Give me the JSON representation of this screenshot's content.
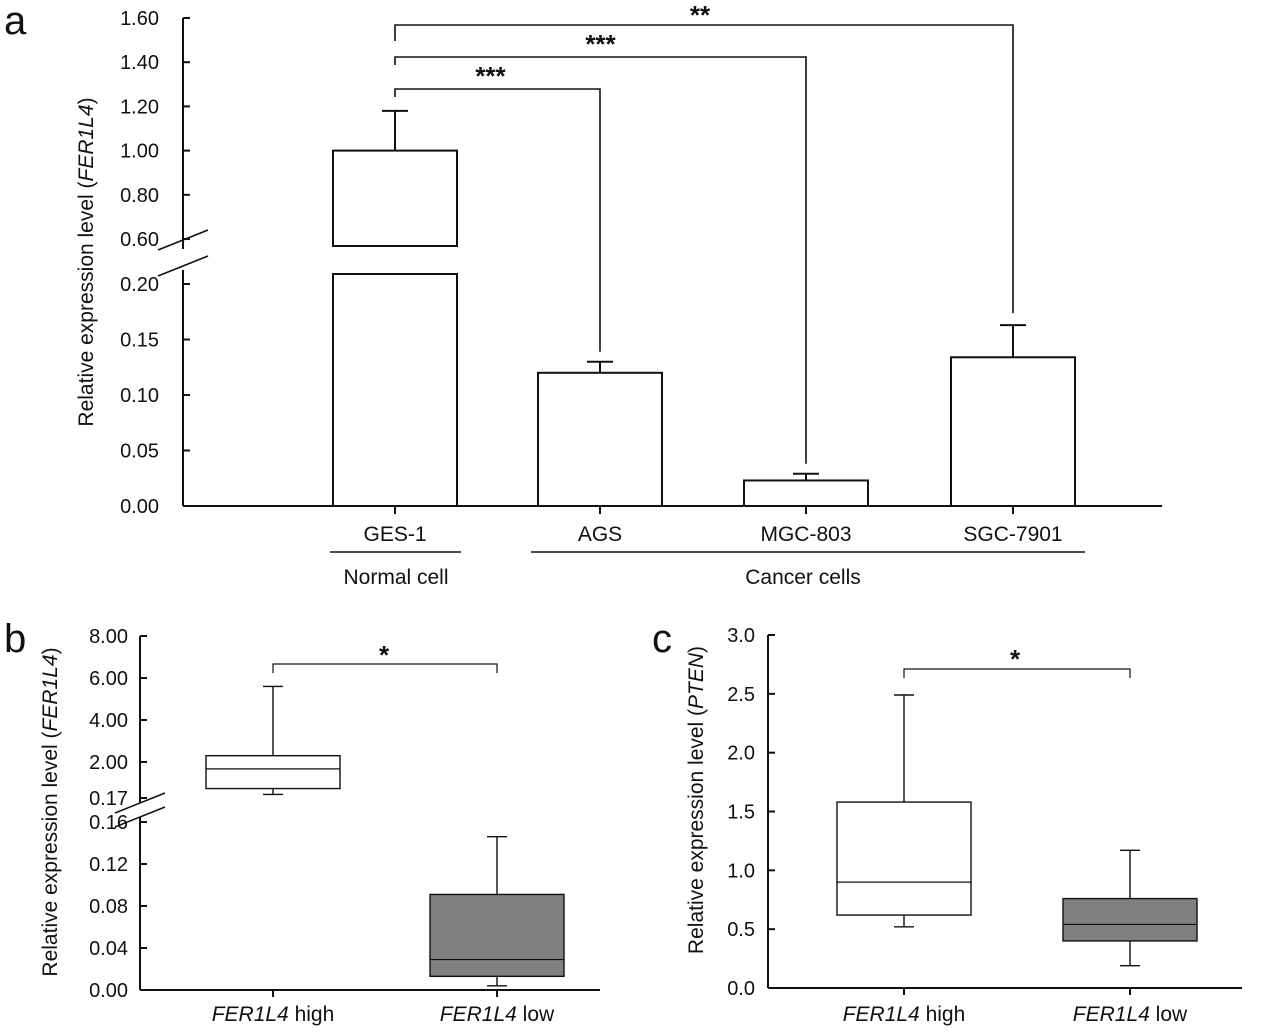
{
  "panels": {
    "a": "a",
    "b": "b",
    "c": "c"
  },
  "chart_data": [
    {
      "id": "a",
      "type": "bar",
      "ylabel_prefix": "Relative expression level (",
      "ylabel_italic": "FER1L4",
      "ylabel_suffix": ")",
      "y_axis_break": true,
      "lower_ylim": [
        0,
        0.2
      ],
      "upper_ylim": [
        0.6,
        1.6
      ],
      "lower_ticks": [
        "0.00",
        "0.05",
        "0.10",
        "0.15",
        "0.20"
      ],
      "upper_ticks": [
        "0.60",
        "0.80",
        "1.00",
        "1.20",
        "1.40",
        "1.60"
      ],
      "categories": [
        "GES-1",
        "AGS",
        "MGC-803",
        "SGC-7901"
      ],
      "values": [
        1.0,
        0.12,
        0.023,
        0.134
      ],
      "errors": [
        0.18,
        0.01,
        0.006,
        0.029
      ],
      "groups": [
        {
          "label": "Normal cell",
          "members": [
            "GES-1"
          ]
        },
        {
          "label": "Cancer cells",
          "members": [
            "AGS",
            "MGC-803",
            "SGC-7901"
          ]
        }
      ],
      "comparisons": [
        {
          "from": "GES-1",
          "to": "AGS",
          "label": "***"
        },
        {
          "from": "GES-1",
          "to": "MGC-803",
          "label": "***"
        },
        {
          "from": "GES-1",
          "to": "SGC-7901",
          "label": "**"
        }
      ]
    },
    {
      "id": "b",
      "type": "box",
      "ylabel_prefix": "Relative expression level (",
      "ylabel_italic": "FER1L4",
      "ylabel_suffix": ")",
      "y_axis_break": true,
      "lower_ylim": [
        0,
        0.16
      ],
      "upper_ylim": [
        0.17,
        8.0
      ],
      "lower_ticks": [
        "0.00",
        "0.04",
        "0.08",
        "0.12",
        "0.16"
      ],
      "upper_ticks": [
        "0.17",
        "2.00",
        "4.00",
        "6.00",
        "8.00"
      ],
      "categories": [
        {
          "italic": "FER1L4",
          "rest": " high"
        },
        {
          "italic": "FER1L4",
          "rest": " low"
        }
      ],
      "boxes": [
        {
          "min": 0.35,
          "q1": 0.65,
          "median": 1.65,
          "q3": 2.3,
          "max": 5.6,
          "fill": "#ffffff"
        },
        {
          "min": 0.004,
          "q1": 0.013,
          "median": 0.029,
          "q3": 0.091,
          "max": 0.146,
          "fill": "#808080"
        }
      ],
      "comparison": {
        "label": "*"
      }
    },
    {
      "id": "c",
      "type": "box",
      "ylabel_prefix": "Relative expression level (",
      "ylabel_italic": "PTEN",
      "ylabel_suffix": ")",
      "ylim": [
        0,
        3.0
      ],
      "ticks": [
        "0.0",
        "0.5",
        "1.0",
        "1.5",
        "2.0",
        "2.5",
        "3.0"
      ],
      "categories": [
        {
          "italic": "FER1L4",
          "rest": " high"
        },
        {
          "italic": "FER1L4",
          "rest": " low"
        }
      ],
      "boxes": [
        {
          "min": 0.52,
          "q1": 0.62,
          "median": 0.9,
          "q3": 1.58,
          "max": 2.49,
          "fill": "#ffffff"
        },
        {
          "min": 0.19,
          "q1": 0.4,
          "median": 0.54,
          "q3": 0.76,
          "max": 1.17,
          "fill": "#808080"
        }
      ],
      "comparison": {
        "label": "*"
      }
    }
  ]
}
